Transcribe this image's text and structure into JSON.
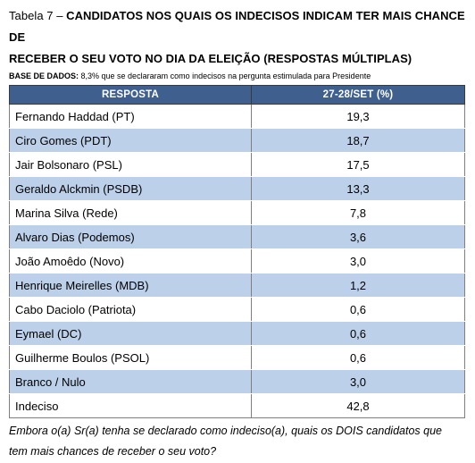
{
  "caption": {
    "prefix": "Tabela 7 – ",
    "title_line1": "CANDIDATOS NOS QUAIS OS INDECISOS INDICAM TER MAIS CHANCE DE",
    "title_line2": "RECEBER O SEU VOTO NO DIA DA ELEIÇÃO (RESPOSTAS MÚLTIPLAS)"
  },
  "base": {
    "label": "BASE DE DADOS:",
    "text": " 8,3% que se declararam como indecisos na pergunta estimulada para Presidente"
  },
  "table": {
    "headers": [
      "RESPOSTA",
      "27-28/SET (%)"
    ],
    "rows": [
      {
        "label": "Fernando Haddad (PT)",
        "value": "19,3"
      },
      {
        "label": "Ciro Gomes (PDT)",
        "value": "18,7"
      },
      {
        "label": "Jair Bolsonaro (PSL)",
        "value": "17,5"
      },
      {
        "label": "Geraldo Alckmin (PSDB)",
        "value": "13,3"
      },
      {
        "label": "Marina Silva (Rede)",
        "value": "7,8"
      },
      {
        "label": "Alvaro Dias (Podemos)",
        "value": "3,6"
      },
      {
        "label": "João Amoêdo (Novo)",
        "value": "3,0"
      },
      {
        "label": "Henrique Meirelles (MDB)",
        "value": "1,2"
      },
      {
        "label": "Cabo Daciolo (Patriota)",
        "value": "0,6"
      },
      {
        "label": "Eymael (DC)",
        "value": "0,6"
      },
      {
        "label": "Guilherme Boulos (PSOL)",
        "value": "0,6"
      },
      {
        "label": "Branco / Nulo",
        "value": "3,0"
      },
      {
        "label": "Indeciso",
        "value": "42,8"
      }
    ]
  },
  "note": {
    "line1": "Embora o(a) Sr(a) tenha se declarado como indeciso(a), quais os DOIS candidatos que",
    "line2": "tem mais chances de receber o seu voto?"
  },
  "colors": {
    "header_bg": "#3f5f8f",
    "alt_row_bg": "#bdd0e9"
  }
}
